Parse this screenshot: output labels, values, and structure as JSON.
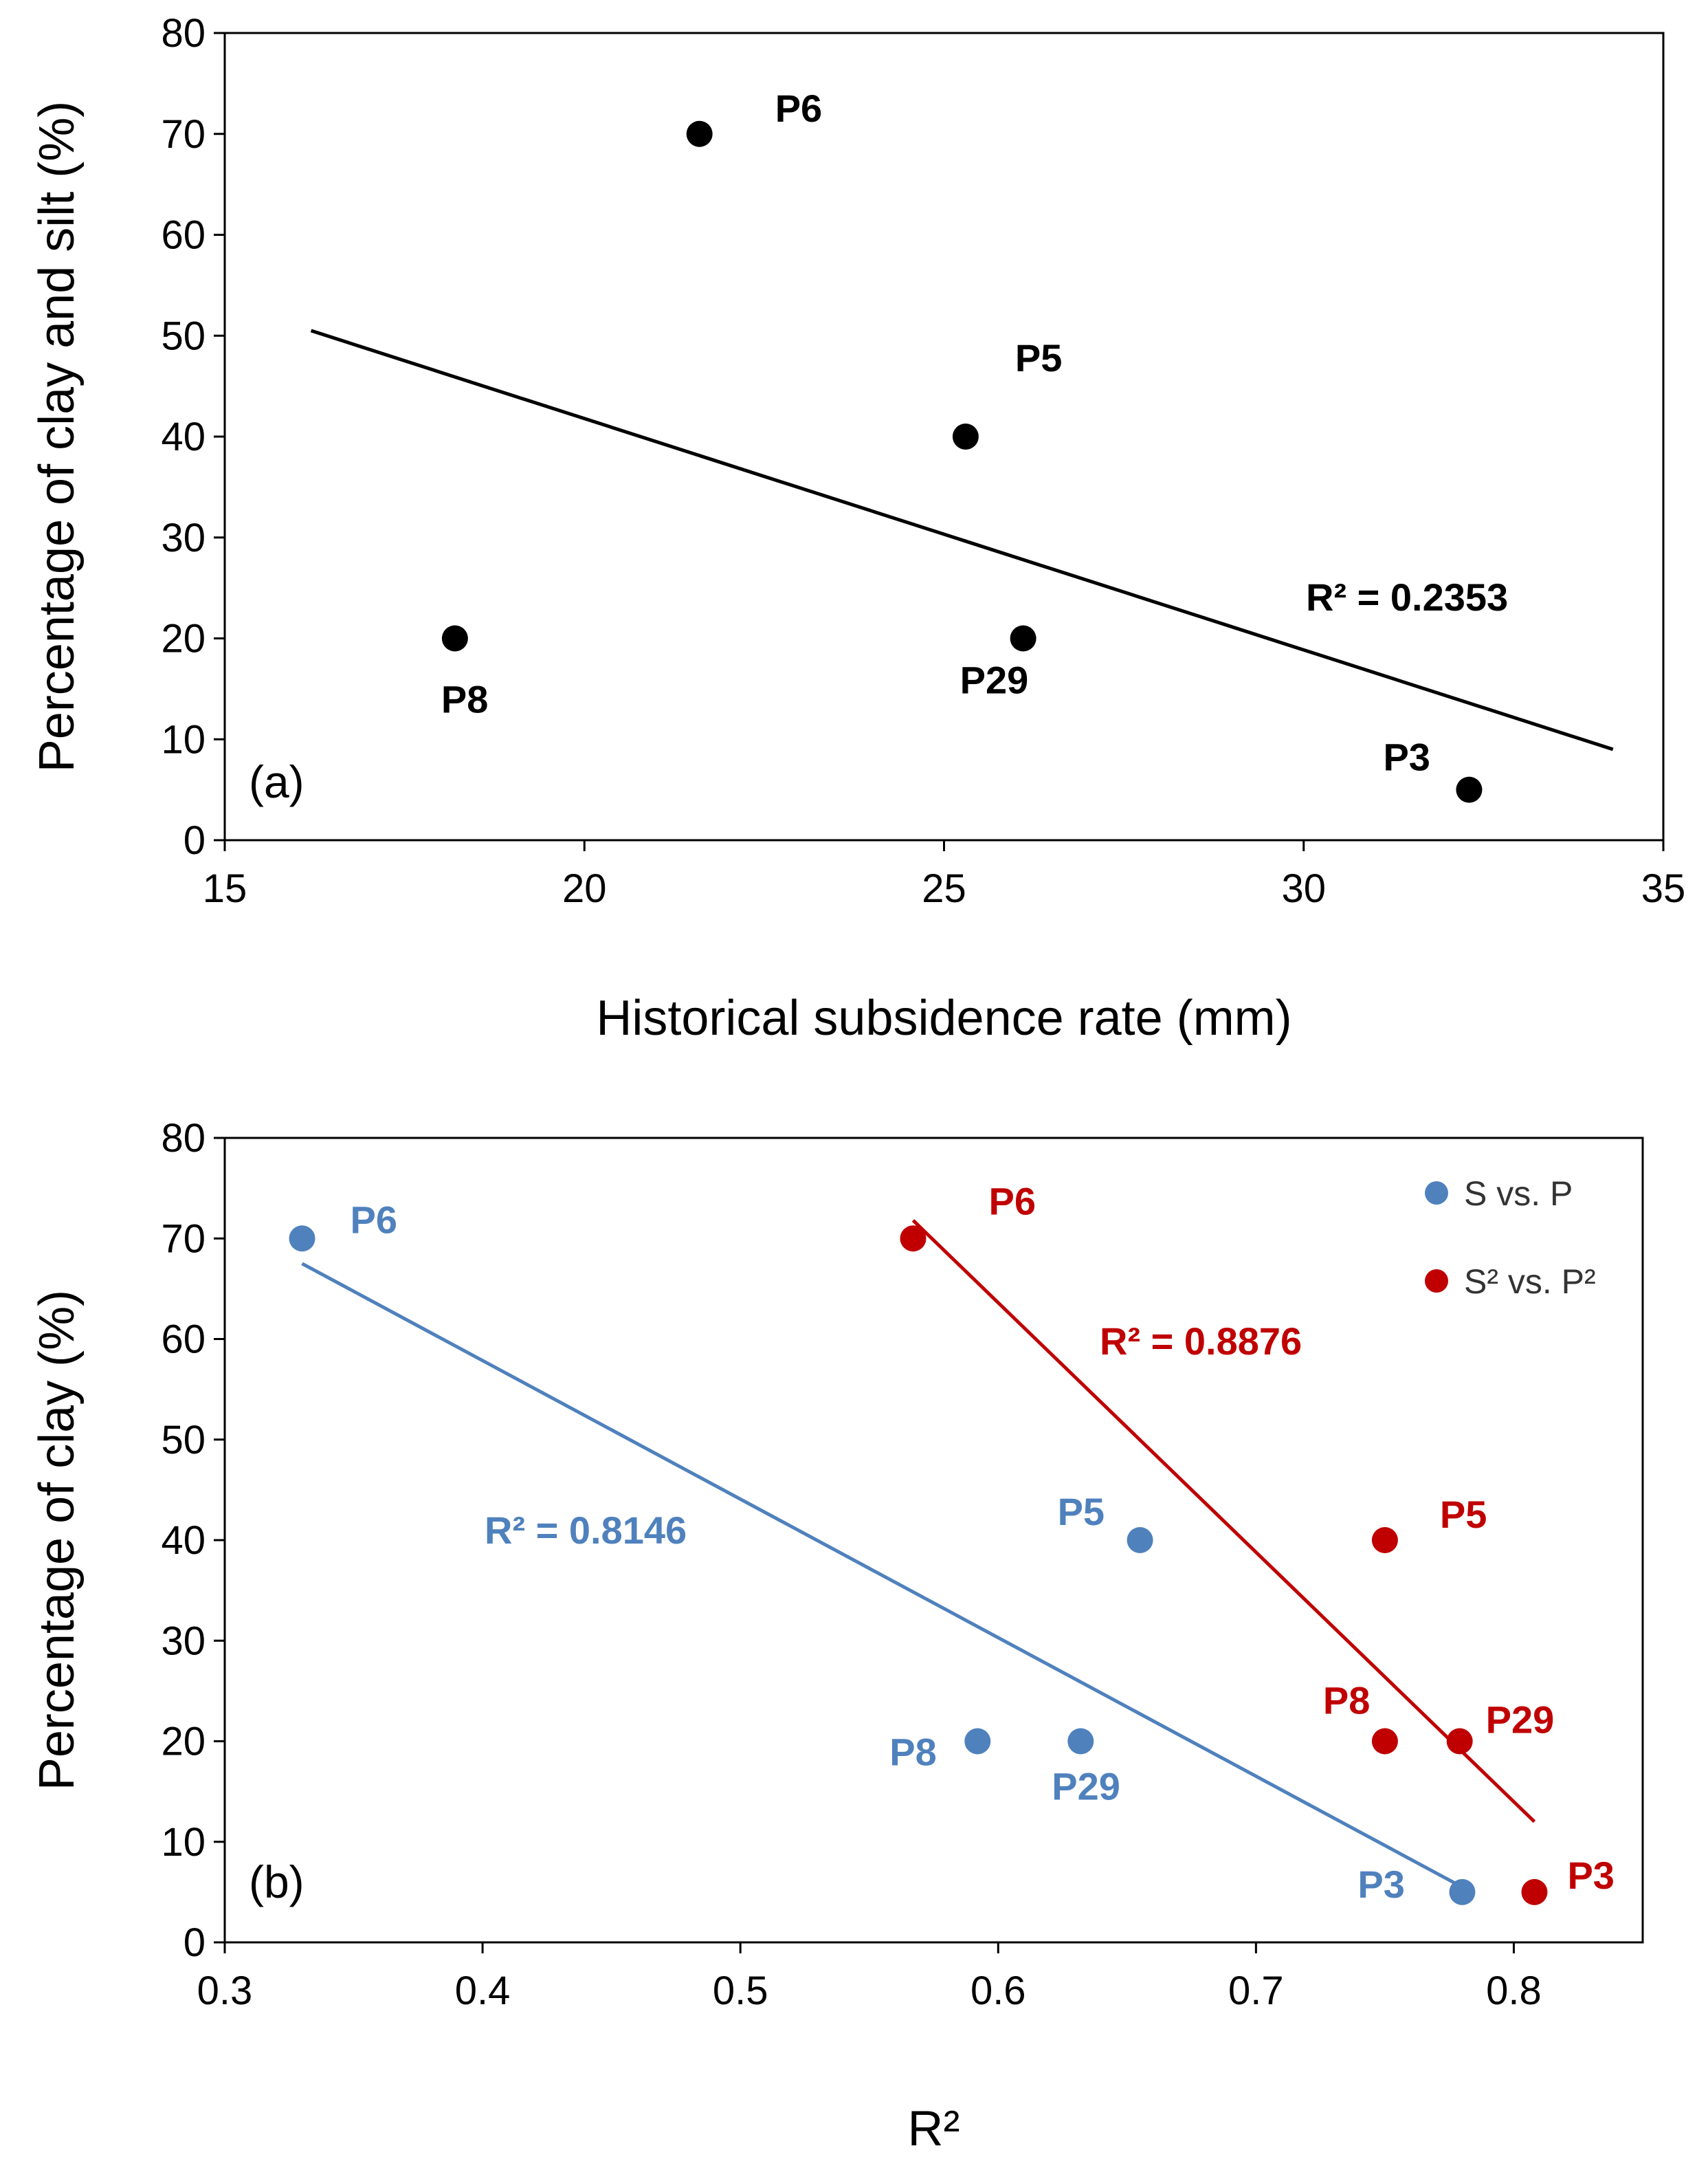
{
  "chart_data": [
    {
      "panel": "(a)",
      "type": "scatter",
      "xlabel": "Historical subsidence  rate (mm)",
      "ylabel": "Percentage of clay and silt (%)",
      "xlim": [
        15,
        35
      ],
      "ylim": [
        0,
        80
      ],
      "xticks": [
        "15",
        "20",
        "25",
        "30",
        "35"
      ],
      "yticks": [
        "0",
        "10",
        "20",
        "30",
        "40",
        "50",
        "60",
        "70",
        "80"
      ],
      "series": [
        {
          "name": "points",
          "color": "#000000",
          "points": [
            {
              "label": "P6",
              "x": 21.6,
              "y": 70
            },
            {
              "label": "P5",
              "x": 25.3,
              "y": 40
            },
            {
              "label": "P8",
              "x": 18.2,
              "y": 20
            },
            {
              "label": "P29",
              "x": 26.1,
              "y": 20
            },
            {
              "label": "P3",
              "x": 32.3,
              "y": 5
            }
          ],
          "trendline": {
            "x": [
              16.2,
              34.3
            ],
            "y": [
              50.5,
              9.0
            ],
            "r2_text": "R² = 0.2353"
          }
        }
      ]
    },
    {
      "panel": "(b)",
      "type": "scatter",
      "xlabel": "R²",
      "ylabel": "Percentage of clay (%)",
      "xlim": [
        0.3,
        0.85
      ],
      "ylim": [
        0,
        80
      ],
      "xticks": [
        "0.3",
        "0.4",
        "0.5",
        "0.6",
        "0.7",
        "0.8"
      ],
      "yticks": [
        "0",
        "10",
        "20",
        "30",
        "40",
        "50",
        "60",
        "70",
        "80"
      ],
      "legend_position": "top-right",
      "series": [
        {
          "name": "S vs. P",
          "color": "#4f81bd",
          "points": [
            {
              "label": "P6",
              "x": 0.33,
              "y": 70
            },
            {
              "label": "P5",
              "x": 0.655,
              "y": 40
            },
            {
              "label": "P8",
              "x": 0.592,
              "y": 20
            },
            {
              "label": "P29",
              "x": 0.632,
              "y": 20
            },
            {
              "label": "P3",
              "x": 0.78,
              "y": 5
            }
          ],
          "trendline": {
            "x": [
              0.33,
              0.78
            ],
            "y": [
              67.5,
              5.5
            ],
            "r2_text": "R² = 0.8146"
          }
        },
        {
          "name": "S² vs. P²",
          "color": "#c00000",
          "points": [
            {
              "label": "P6",
              "x": 0.567,
              "y": 70
            },
            {
              "label": "P5",
              "x": 0.75,
              "y": 40
            },
            {
              "label": "P8",
              "x": 0.75,
              "y": 20
            },
            {
              "label": "P29",
              "x": 0.779,
              "y": 20
            },
            {
              "label": "P3",
              "x": 0.808,
              "y": 5
            }
          ],
          "trendline": {
            "x": [
              0.567,
              0.808
            ],
            "y": [
              71.8,
              12.0
            ],
            "r2_text": "R² = 0.8876"
          }
        }
      ]
    }
  ]
}
